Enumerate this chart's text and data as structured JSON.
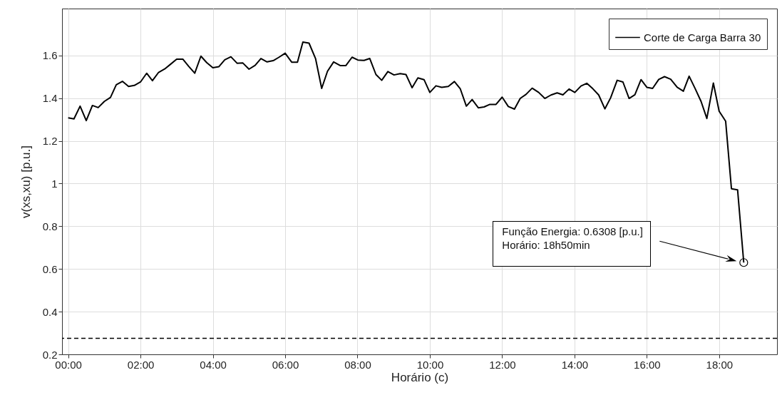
{
  "chart_data": {
    "type": "line",
    "xlabel": "Horário (c)",
    "ylabel": "v(xs,xu) [p.u.]",
    "x": [
      0,
      0.16,
      0.33,
      0.5,
      0.67,
      0.83,
      1.0,
      1.17,
      1.33,
      1.5,
      1.67,
      1.83,
      2.0,
      2.17,
      2.33,
      2.5,
      2.67,
      2.83,
      3.0,
      3.17,
      3.33,
      3.5,
      3.67,
      3.83,
      4.0,
      4.17,
      4.33,
      4.5,
      4.67,
      4.83,
      5.0,
      5.17,
      5.33,
      5.5,
      5.67,
      5.83,
      6.0,
      6.18,
      6.34,
      6.49,
      6.66,
      6.84,
      7.01,
      7.17,
      7.34,
      7.52,
      7.68,
      7.85,
      8.01,
      8.18,
      8.34,
      8.51,
      8.67,
      8.84,
      9.01,
      9.18,
      9.34,
      9.51,
      9.67,
      9.84,
      10.0,
      10.17,
      10.33,
      10.51,
      10.68,
      10.84,
      11.01,
      11.17,
      11.34,
      11.5,
      11.66,
      11.83,
      12.0,
      12.17,
      12.34,
      12.5,
      12.66,
      12.83,
      13.01,
      13.18,
      13.35,
      13.52,
      13.68,
      13.85,
      14.01,
      14.18,
      14.34,
      14.51,
      14.67,
      14.84,
      15.0,
      15.18,
      15.34,
      15.51,
      15.67,
      15.84,
      16.0,
      16.16,
      16.33,
      16.49,
      16.66,
      16.84,
      17.01,
      17.17,
      17.34,
      17.5,
      17.66,
      17.84,
      18.0,
      18.18,
      18.34,
      18.51,
      18.68
    ],
    "series": [
      {
        "name": "Corte de Carga Barra 30",
        "color": "#000000",
        "values": [
          1.308,
          1.303,
          1.363,
          1.295,
          1.366,
          1.356,
          1.385,
          1.404,
          1.463,
          1.479,
          1.455,
          1.46,
          1.476,
          1.517,
          1.482,
          1.521,
          1.537,
          1.559,
          1.583,
          1.583,
          1.55,
          1.517,
          1.597,
          1.567,
          1.543,
          1.548,
          1.58,
          1.594,
          1.564,
          1.565,
          1.536,
          1.554,
          1.586,
          1.57,
          1.576,
          1.592,
          1.611,
          1.569,
          1.569,
          1.663,
          1.658,
          1.586,
          1.446,
          1.526,
          1.57,
          1.553,
          1.553,
          1.592,
          1.579,
          1.577,
          1.586,
          1.511,
          1.484,
          1.525,
          1.509,
          1.515,
          1.511,
          1.449,
          1.495,
          1.487,
          1.427,
          1.458,
          1.451,
          1.455,
          1.478,
          1.445,
          1.363,
          1.394,
          1.355,
          1.359,
          1.371,
          1.371,
          1.405,
          1.361,
          1.349,
          1.399,
          1.418,
          1.447,
          1.427,
          1.399,
          1.415,
          1.425,
          1.416,
          1.443,
          1.427,
          1.457,
          1.47,
          1.444,
          1.415,
          1.35,
          1.402,
          1.484,
          1.476,
          1.399,
          1.416,
          1.487,
          1.451,
          1.446,
          1.488,
          1.501,
          1.489,
          1.451,
          1.433,
          1.503,
          1.444,
          1.385,
          1.305,
          1.471,
          1.339,
          1.292,
          0.976,
          0.971,
          0.63
        ]
      }
    ],
    "xlim": [
      -0.17,
      19.6
    ],
    "ylim": [
      0.2,
      1.82
    ],
    "xticks": [
      {
        "value": 0,
        "label": "00:00"
      },
      {
        "value": 2,
        "label": "02:00"
      },
      {
        "value": 4,
        "label": "04:00"
      },
      {
        "value": 6,
        "label": "06:00"
      },
      {
        "value": 8,
        "label": "08:00"
      },
      {
        "value": 10,
        "label": "10:00"
      },
      {
        "value": 12,
        "label": "12:00"
      },
      {
        "value": 14,
        "label": "14:00"
      },
      {
        "value": 16,
        "label": "16:00"
      },
      {
        "value": 18,
        "label": "18:00"
      }
    ],
    "yticks": [
      0.2,
      0.4,
      0.6,
      0.8,
      1,
      1.2,
      1.4,
      1.6
    ],
    "ref_lines": [
      {
        "axis": "y",
        "value": 0.275,
        "color": "#000000",
        "line_style": "dashed"
      }
    ],
    "annotations": [
      "Função Energia: 0.6308 [p.u.]\nHorário: 18h50min"
    ],
    "grid": true,
    "legend": "top right",
    "marker": "none",
    "line_style": "solid"
  }
}
